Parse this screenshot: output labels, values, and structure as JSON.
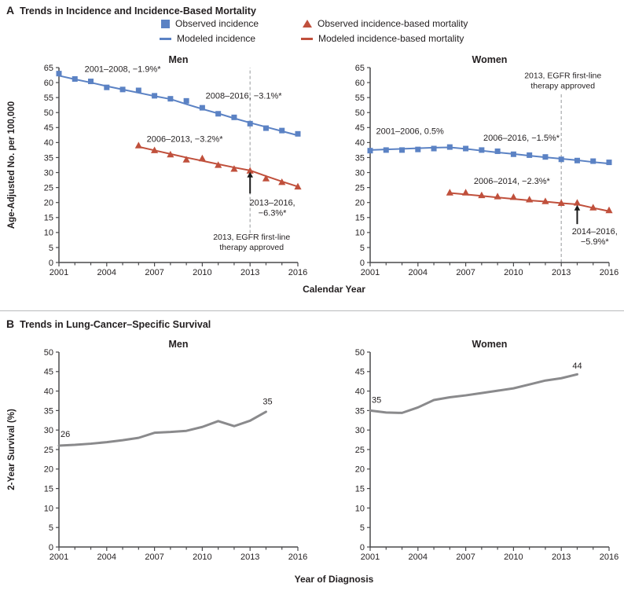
{
  "page": {
    "panel_a_label": "A",
    "panel_a_title": "Trends in Incidence and Incidence-Based Mortality",
    "panel_b_label": "B",
    "panel_b_title": "Trends in Lung-Cancer–Specific Survival",
    "calendar_year_label": "Calendar Year",
    "year_of_diagnosis_label": "Year of Diagnosis",
    "age_adjusted_ylabel": "Age-Adjusted No. per 100,000",
    "survival_ylabel": "2-Year Survival (%)"
  },
  "colors": {
    "blue": "#5b82c4",
    "red": "#c0503c",
    "gray_line": "#8a8a8c",
    "axis": "#4a4a4c",
    "text": "#231f20",
    "dashed": "#aeb0b2",
    "arrow": "#1a1a1a"
  },
  "legend": {
    "items": [
      {
        "marker": "square",
        "color": "#5b82c4",
        "label": "Observed incidence"
      },
      {
        "marker": "triangle",
        "color": "#c0503c",
        "label": "Observed incidence-based mortality"
      },
      {
        "marker": "line",
        "color": "#5b82c4",
        "label": "Modeled incidence"
      },
      {
        "marker": "line",
        "color": "#c0503c",
        "label": "Modeled incidence-based mortality"
      }
    ]
  },
  "chart_data": [
    {
      "id": "a-men",
      "type": "line",
      "title": "Men",
      "xlabel": "Calendar Year",
      "ylabel": "Age-Adjusted No. per 100,000",
      "xlim": [
        2001,
        2016
      ],
      "ylim": [
        0,
        65
      ],
      "xticks": [
        2001,
        2004,
        2007,
        2010,
        2013,
        2016
      ],
      "yticks": [
        0,
        5,
        10,
        15,
        20,
        25,
        30,
        35,
        40,
        45,
        50,
        55,
        60,
        65
      ],
      "grid": false,
      "vline": {
        "x": 2013,
        "y1": 9.8,
        "y2": 65
      },
      "arrow": {
        "x": 2013,
        "y1": 23,
        "y2": 30.2
      },
      "series": [
        {
          "name": "Modeled incidence",
          "type": "line",
          "color": "#5b82c4",
          "width": 2,
          "x": [
            2001,
            2002,
            2003,
            2004,
            2005,
            2006,
            2007,
            2008,
            2009,
            2010,
            2011,
            2012,
            2013,
            2014,
            2015,
            2016
          ],
          "y": [
            62.3,
            61.1,
            60.0,
            58.8,
            57.7,
            56.6,
            55.5,
            54.5,
            52.8,
            51.2,
            49.7,
            48.1,
            46.6,
            45.2,
            43.8,
            42.4
          ]
        },
        {
          "name": "Modeled incidence-based mortality",
          "type": "line",
          "color": "#c0503c",
          "width": 2,
          "x": [
            2006,
            2007,
            2008,
            2009,
            2010,
            2011,
            2012,
            2013,
            2014,
            2015,
            2016
          ],
          "y": [
            38.6,
            37.4,
            36.2,
            35.0,
            33.9,
            32.8,
            31.7,
            30.7,
            28.8,
            27.0,
            25.3
          ]
        },
        {
          "name": "Observed incidence",
          "type": "scatter",
          "marker": "square",
          "color": "#5b82c4",
          "x": [
            2001,
            2002,
            2003,
            2004,
            2005,
            2006,
            2007,
            2008,
            2009,
            2010,
            2011,
            2012,
            2013,
            2014,
            2015,
            2016
          ],
          "y": [
            63.0,
            61.2,
            60.4,
            58.4,
            57.7,
            57.4,
            55.6,
            54.6,
            53.9,
            51.6,
            49.6,
            48.4,
            46.3,
            44.8,
            44.0,
            42.9
          ]
        },
        {
          "name": "Observed incidence-based mortality",
          "type": "scatter",
          "marker": "triangle",
          "color": "#c0503c",
          "x": [
            2006,
            2007,
            2008,
            2009,
            2010,
            2011,
            2012,
            2013,
            2014,
            2015,
            2016
          ],
          "y": [
            39.0,
            37.4,
            36.0,
            34.3,
            34.7,
            32.5,
            31.2,
            30.6,
            28.0,
            26.8,
            25.3
          ]
        }
      ],
      "annotations": [
        {
          "lines": [
            "2001–2008, −1.9%*"
          ],
          "x": 2005.0,
          "y": 63.6
        },
        {
          "lines": [
            "2008–2016, −3.1%*"
          ],
          "x": 2012.6,
          "y": 54.6
        },
        {
          "lines": [
            "2006–2013, −3.2%*"
          ],
          "x": 2008.9,
          "y": 40.2
        },
        {
          "lines": [
            "2013–2016,",
            "−6.3%*"
          ],
          "x": 2014.4,
          "y": 19.0
        },
        {
          "lines": [
            "2013, EGFR first-line",
            "therapy approved"
          ],
          "x": 2013.1,
          "y": 7.6,
          "size": 10.5
        }
      ]
    },
    {
      "id": "a-women",
      "type": "line",
      "title": "Women",
      "xlabel": "Calendar Year",
      "ylabel": "Age-Adjusted No. per 100,000",
      "xlim": [
        2001,
        2016
      ],
      "ylim": [
        0,
        65
      ],
      "xticks": [
        2001,
        2004,
        2007,
        2010,
        2013,
        2016
      ],
      "yticks": [
        0,
        5,
        10,
        15,
        20,
        25,
        30,
        35,
        40,
        45,
        50,
        55,
        60,
        65
      ],
      "grid": false,
      "vline": {
        "x": 2013,
        "y1": 0,
        "y2": 56.5
      },
      "arrow": {
        "x": 2014,
        "y1": 12.8,
        "y2": 19.2
      },
      "series": [
        {
          "name": "Modeled incidence",
          "type": "line",
          "color": "#5b82c4",
          "width": 2,
          "x": [
            2001,
            2002,
            2003,
            2004,
            2005,
            2006,
            2007,
            2008,
            2009,
            2010,
            2011,
            2012,
            2013,
            2014,
            2015,
            2016
          ],
          "y": [
            37.5,
            37.7,
            37.9,
            38.1,
            38.3,
            38.4,
            37.9,
            37.3,
            36.7,
            36.2,
            35.6,
            35.1,
            34.6,
            34.1,
            33.5,
            33.0
          ]
        },
        {
          "name": "Modeled incidence-based mortality",
          "type": "line",
          "color": "#c0503c",
          "width": 2,
          "x": [
            2006,
            2007,
            2008,
            2009,
            2010,
            2011,
            2012,
            2013,
            2014,
            2015,
            2016
          ],
          "y": [
            23.2,
            22.7,
            22.2,
            21.7,
            21.2,
            20.7,
            20.3,
            19.8,
            19.4,
            18.2,
            17.1
          ]
        },
        {
          "name": "Observed incidence",
          "type": "scatter",
          "marker": "square",
          "color": "#5b82c4",
          "x": [
            2001,
            2002,
            2003,
            2004,
            2005,
            2006,
            2007,
            2008,
            2009,
            2010,
            2011,
            2012,
            2013,
            2014,
            2015,
            2016
          ],
          "y": [
            37.3,
            37.5,
            37.5,
            37.7,
            38.0,
            38.5,
            38.0,
            37.5,
            37.1,
            36.1,
            35.8,
            35.2,
            34.4,
            34.0,
            33.8,
            33.4
          ]
        },
        {
          "name": "Observed incidence-based mortality",
          "type": "scatter",
          "marker": "triangle",
          "color": "#c0503c",
          "x": [
            2006,
            2007,
            2008,
            2009,
            2010,
            2011,
            2012,
            2013,
            2014,
            2015,
            2016
          ],
          "y": [
            23.3,
            23.3,
            22.4,
            22.0,
            21.8,
            21.0,
            20.4,
            19.8,
            19.9,
            18.3,
            17.4
          ]
        }
      ],
      "annotations": [
        {
          "lines": [
            "2013, EGFR first-line",
            "therapy approved"
          ],
          "x": 2013.1,
          "y": 61.4,
          "size": 10.5
        },
        {
          "lines": [
            "2001–2006, 0.5%"
          ],
          "x": 2003.5,
          "y": 42.8
        },
        {
          "lines": [
            "2006–2016, −1.5%*"
          ],
          "x": 2010.5,
          "y": 40.6
        },
        {
          "lines": [
            "2006–2014, −2.3%*"
          ],
          "x": 2009.9,
          "y": 26.2
        },
        {
          "lines": [
            "2014–2016,",
            "−5.9%*"
          ],
          "x": 2015.1,
          "y": 9.4
        }
      ]
    },
    {
      "id": "b-men",
      "type": "line",
      "title": "Men",
      "xlabel": "Year of Diagnosis",
      "ylabel": "2-Year Survival (%)",
      "xlim": [
        2001,
        2016
      ],
      "ylim": [
        0,
        50
      ],
      "xticks": [
        2001,
        2004,
        2007,
        2010,
        2013,
        2016
      ],
      "yticks": [
        0,
        5,
        10,
        15,
        20,
        25,
        30,
        35,
        40,
        45,
        50
      ],
      "grid": false,
      "series": [
        {
          "name": "2-Year survival, men",
          "type": "line",
          "color": "#8a8a8c",
          "width": 3,
          "x": [
            2001,
            2002,
            2003,
            2004,
            2005,
            2006,
            2007,
            2008,
            2009,
            2010,
            2011,
            2012,
            2013,
            2014
          ],
          "y": [
            26.0,
            26.2,
            26.5,
            26.9,
            27.4,
            28.0,
            29.3,
            29.5,
            29.8,
            30.8,
            32.3,
            31.0,
            32.4,
            34.7
          ]
        }
      ],
      "annotations": [
        {
          "lines": [
            "26"
          ],
          "x": 2001.4,
          "y": 28.2
        },
        {
          "lines": [
            "35"
          ],
          "x": 2014.1,
          "y": 36.6
        }
      ]
    },
    {
      "id": "b-women",
      "type": "line",
      "title": "Women",
      "xlabel": "Year of Diagnosis",
      "ylabel": "2-Year Survival (%)",
      "xlim": [
        2001,
        2016
      ],
      "ylim": [
        0,
        50
      ],
      "xticks": [
        2001,
        2004,
        2007,
        2010,
        2013,
        2016
      ],
      "yticks": [
        0,
        5,
        10,
        15,
        20,
        25,
        30,
        35,
        40,
        45,
        50
      ],
      "grid": false,
      "series": [
        {
          "name": "2-Year survival, women",
          "type": "line",
          "color": "#8a8a8c",
          "width": 3,
          "x": [
            2001,
            2002,
            2003,
            2004,
            2005,
            2006,
            2007,
            2008,
            2009,
            2010,
            2011,
            2012,
            2013,
            2014
          ],
          "y": [
            35.0,
            34.5,
            34.4,
            35.8,
            37.7,
            38.4,
            38.9,
            39.5,
            40.1,
            40.7,
            41.7,
            42.7,
            43.3,
            44.3
          ]
        }
      ],
      "annotations": [
        {
          "lines": [
            "35"
          ],
          "x": 2001.4,
          "y": 37.0
        },
        {
          "lines": [
            "44"
          ],
          "x": 2014.0,
          "y": 45.8
        }
      ]
    }
  ]
}
